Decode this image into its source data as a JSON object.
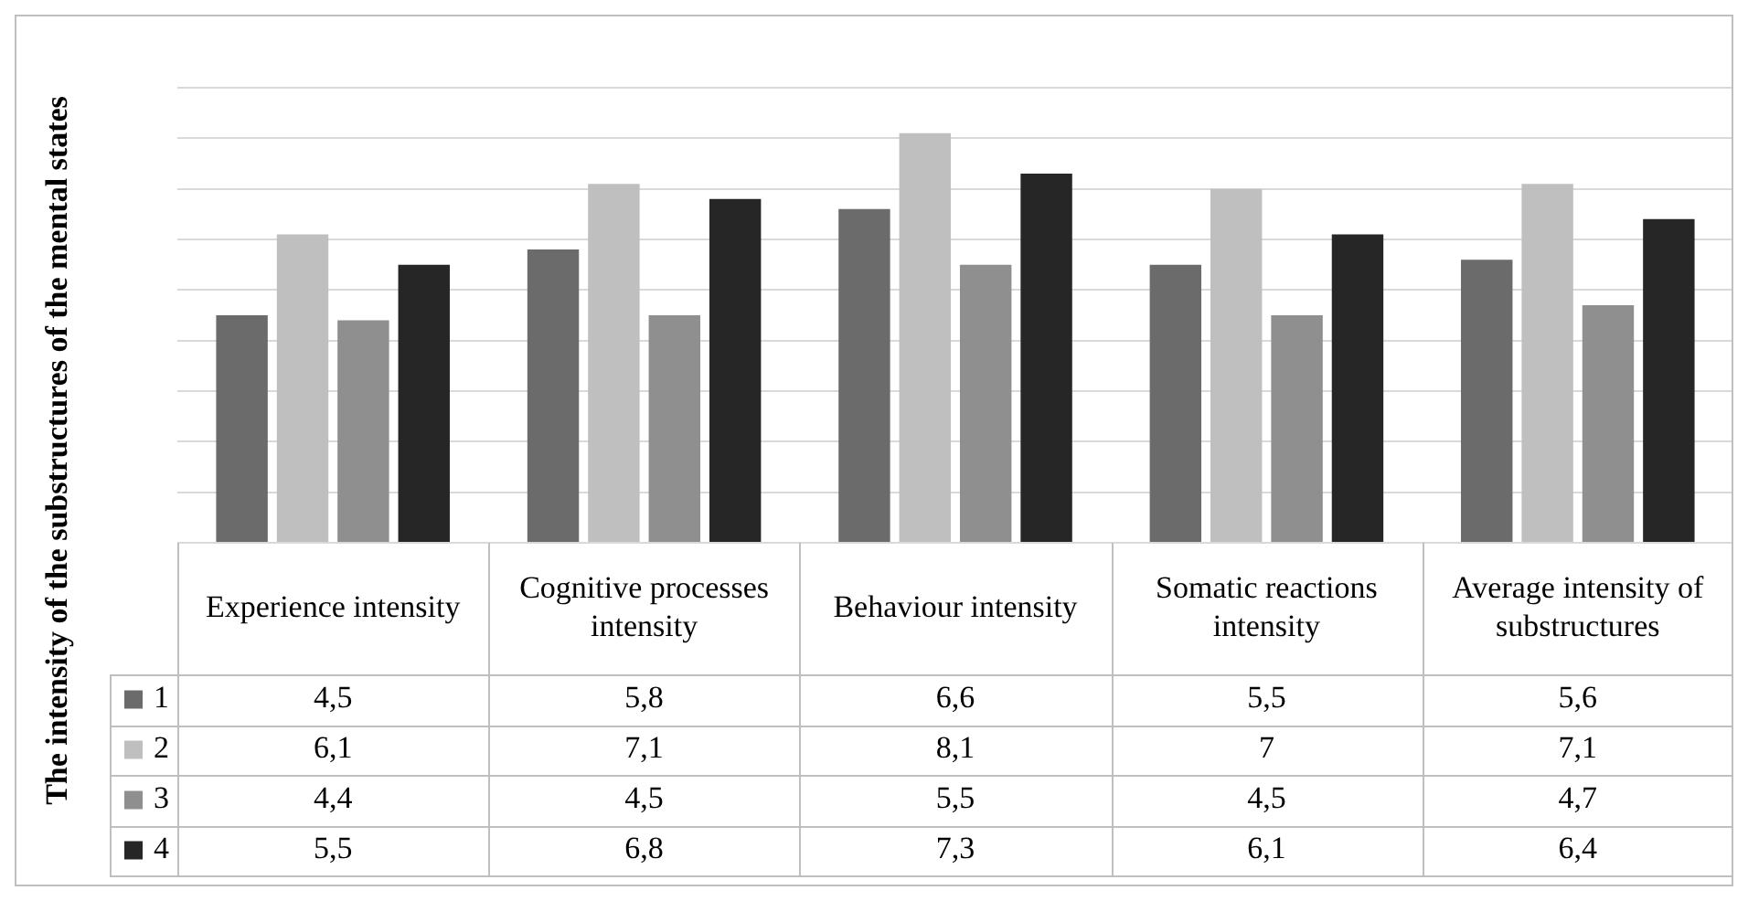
{
  "chart_data": {
    "type": "bar",
    "ylabel": "The intensity of the substructures of the mental states",
    "categories": [
      "Experience intensity",
      "Cognitive processes intensity",
      "Behaviour intensity",
      "Somatic reactions intensity",
      "Average intensity of substructures"
    ],
    "series": [
      {
        "name": "1",
        "color": "#6b6b6b",
        "values": [
          4.5,
          5.8,
          6.6,
          5.5,
          5.6
        ],
        "value_labels": [
          "4,5",
          "5,8",
          "6,6",
          "5,5",
          "5,6"
        ]
      },
      {
        "name": "2",
        "color": "#bfbfbf",
        "values": [
          6.1,
          7.1,
          8.1,
          7,
          7.1
        ],
        "value_labels": [
          "6,1",
          "7,1",
          "8,1",
          "7",
          "7,1"
        ]
      },
      {
        "name": "3",
        "color": "#8f8f8f",
        "values": [
          4.4,
          4.5,
          5.5,
          4.5,
          4.7
        ],
        "value_labels": [
          "4,4",
          "4,5",
          "5,5",
          "4,5",
          "4,7"
        ]
      },
      {
        "name": "4",
        "color": "#262626",
        "values": [
          5.5,
          6.8,
          7.3,
          6.1,
          6.4
        ],
        "value_labels": [
          "5,5",
          "6,8",
          "7,3",
          "6,1",
          "6,4"
        ]
      }
    ],
    "grid": "y",
    "tick_labels": "x",
    "legend": "bottom"
  }
}
